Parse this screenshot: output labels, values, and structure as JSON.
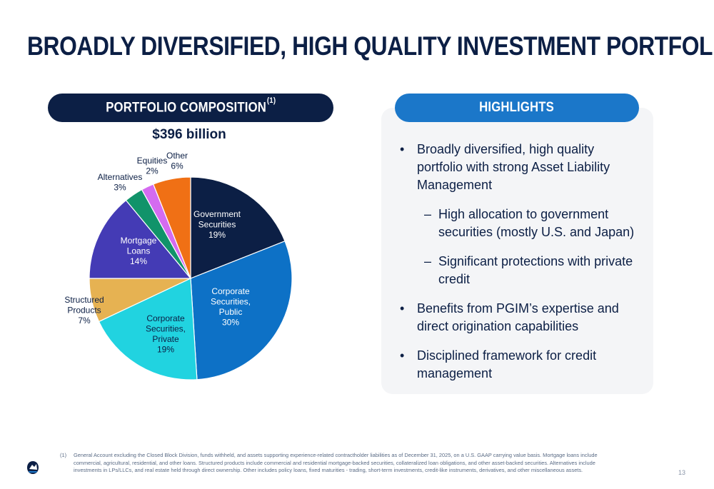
{
  "slide": {
    "title": "BROADLY DIVERSIFIED, HIGH QUALITY INVESTMENT PORTFOLIO",
    "page_number": "13"
  },
  "composition": {
    "header": "PORTFOLIO COMPOSITION",
    "header_footnote_mark": "(1)",
    "total": "$396 billion"
  },
  "highlights": {
    "header": "HIGHLIGHTS",
    "bullets": [
      {
        "level": 1,
        "marker": "•",
        "text": "Broadly diversified, high quality portfolio with strong Asset Liability Management"
      },
      {
        "level": 2,
        "marker": "–",
        "text": "High allocation to government securities (mostly U.S. and Japan)"
      },
      {
        "level": 2,
        "marker": "–",
        "text": "Significant protections with private credit"
      },
      {
        "level": 1,
        "marker": "•",
        "text": "Benefits from PGIM’s expertise and direct origination capabilities"
      },
      {
        "level": 1,
        "marker": "•",
        "text": "Disciplined framework for credit management"
      }
    ]
  },
  "chart_data": {
    "type": "pie",
    "title": "$396 billion",
    "unit": "%",
    "start": "12 o'clock, clockwise",
    "slices": [
      {
        "label": [
          "Government",
          "Securities"
        ],
        "value": 19,
        "display": "19%",
        "color": "#0c1f45",
        "label_color": "#ffffff",
        "label_side": "inside"
      },
      {
        "label": [
          "Corporate",
          "Securities,",
          "Public"
        ],
        "value": 30,
        "display": "30%",
        "color": "#0d71c6",
        "label_color": "#ffffff",
        "label_side": "inside"
      },
      {
        "label": [
          "Corporate",
          "Securities,",
          "Private"
        ],
        "value": 19,
        "display": "19%",
        "color": "#21d3e0",
        "label_color": "#0c1f45",
        "label_side": "inside"
      },
      {
        "label": [
          "Structured",
          "Products"
        ],
        "value": 7,
        "display": "7%",
        "color": "#e6b252",
        "label_color": "#0c1f45",
        "label_side": "outside"
      },
      {
        "label": [
          "Mortgage",
          "Loans"
        ],
        "value": 14,
        "display": "14%",
        "color": "#443bb5",
        "label_color": "#ffffff",
        "label_side": "inside"
      },
      {
        "label": [
          "Alternatives"
        ],
        "value": 3,
        "display": "3%",
        "color": "#11936a",
        "label_color": "#0c1f45",
        "label_side": "outside"
      },
      {
        "label": [
          "Equities"
        ],
        "value": 2,
        "display": "2%",
        "color": "#d46bf0",
        "label_color": "#0c1f45",
        "label_side": "outside"
      },
      {
        "label": [
          "Other"
        ],
        "value": 6,
        "display": "6%",
        "color": "#f07015",
        "label_color": "#0c1f45",
        "label_side": "outside"
      }
    ]
  },
  "footnote": {
    "number": "(1)",
    "text": "General Account excluding the Closed Block Division, funds withheld, and assets supporting experience-related contractholder liabilities as of December 31, 2025, on a U.S. GAAP carrying value basis. Mortgage loans include commercial, agricultural, residential, and other loans. Structured products include commercial and residential mortgage-backed securities, collateralized loan obligations, and other asset-backed securities. Alternatives include investments in LPs/LLCs, and real estate held through direct ownership. Other includes policy loans, fixed maturities - trading, short-term investments, credit-like instruments, derivatives, and other miscellaneous assets."
  }
}
